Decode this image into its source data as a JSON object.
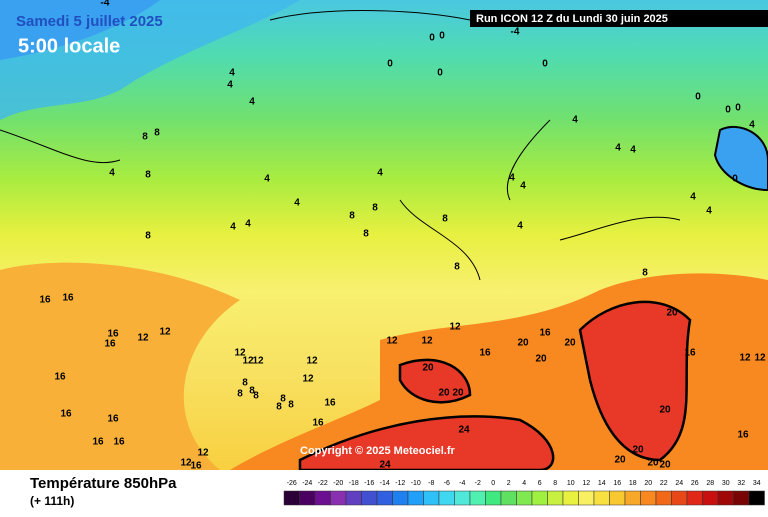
{
  "header": {
    "date": "Samedi 5 juillet 2025",
    "time": "5:00 locale",
    "run": "Run ICON 12 Z du Lundi 30 juin 2025"
  },
  "footer": {
    "title": "Température 850hPa",
    "lead": "(+ 111h)",
    "copyright": "Copyright © 2025 Meteociel.fr"
  },
  "contour_labels": [
    -4,
    0,
    0,
    -4,
    0,
    0,
    0,
    4,
    4,
    4,
    8,
    8,
    4,
    8,
    4,
    4,
    4,
    4,
    4,
    8,
    8,
    8,
    8,
    8,
    8,
    4,
    4,
    4,
    4,
    4,
    4,
    0,
    0,
    0,
    4,
    0,
    4,
    4,
    8,
    16,
    16,
    16,
    16,
    12,
    12,
    12,
    12,
    12,
    16,
    16,
    20,
    20,
    20,
    20,
    16,
    12,
    12,
    16,
    12,
    12,
    12,
    12,
    12,
    8,
    8,
    8,
    8,
    8,
    8,
    8,
    16,
    16,
    16,
    16,
    16,
    16,
    12,
    12,
    16,
    24,
    24,
    20,
    20,
    20,
    20,
    20,
    20,
    20,
    20,
    16
  ],
  "colorbar": {
    "ticks": [
      -26,
      -24,
      -22,
      -20,
      -18,
      -16,
      -14,
      -12,
      -10,
      -8,
      -6,
      -4,
      -2,
      0,
      2,
      4,
      6,
      8,
      10,
      12,
      14,
      16,
      18,
      20,
      22,
      24,
      26,
      28,
      30,
      32,
      34
    ],
    "colors": [
      "#2a0036",
      "#4a0060",
      "#6a1090",
      "#8830b0",
      "#6040c0",
      "#4050d0",
      "#3060e0",
      "#2080f0",
      "#20a0f8",
      "#30c0f8",
      "#40d8f0",
      "#50e8d8",
      "#50f0b0",
      "#40e880",
      "#60e060",
      "#80e850",
      "#a0f040",
      "#c8f040",
      "#e8f040",
      "#f8f060",
      "#f8e040",
      "#f8c830",
      "#f8a828",
      "#f88820",
      "#f06818",
      "#e84818",
      "#e02818",
      "#c81010",
      "#a00808",
      "#780404",
      "#000000"
    ]
  }
}
